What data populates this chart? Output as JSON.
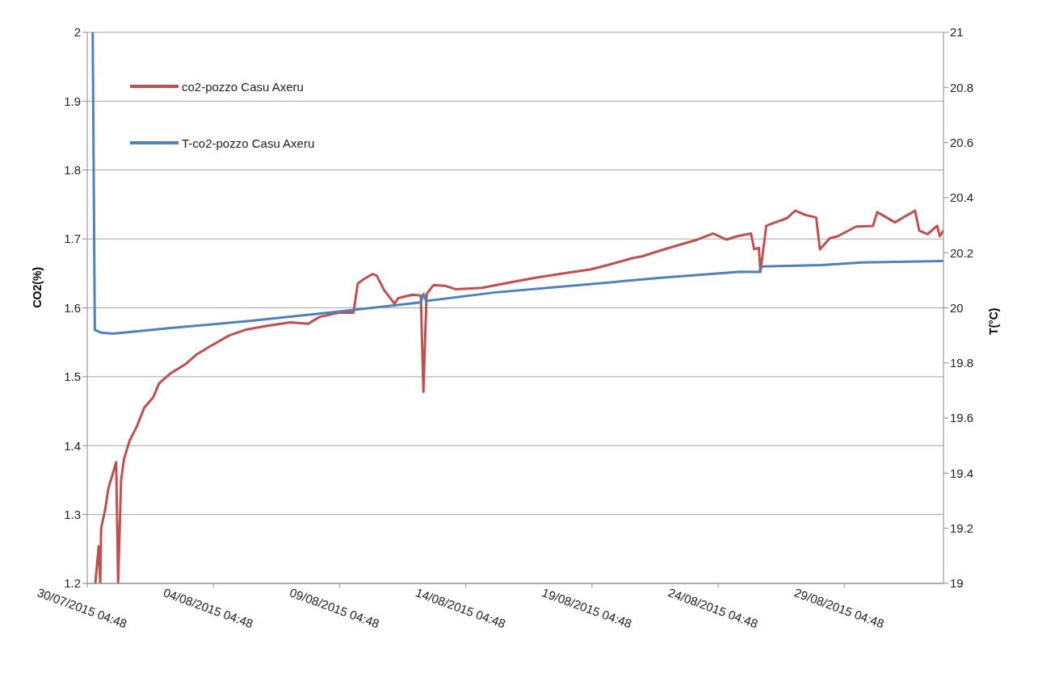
{
  "chart_data": {
    "type": "line",
    "ylabel": "CO2(%)",
    "y2label": "T(°C)",
    "xlim": [
      "2015-07-30T04:48",
      "2015-09-02T03:00"
    ],
    "xticks": [
      {
        "value": "2015-07-30T04:48",
        "label": "30/07/2015 04:48"
      },
      {
        "value": "2015-08-04T04:48",
        "label": "04/08/2015 04:48"
      },
      {
        "value": "2015-08-09T04:48",
        "label": "09/08/2015 04:48"
      },
      {
        "value": "2015-08-14T04:48",
        "label": "14/08/2015 04:48"
      },
      {
        "value": "2015-08-19T04:48",
        "label": "19/08/2015 04:48"
      },
      {
        "value": "2015-08-24T04:48",
        "label": "24/08/2015 04:48"
      },
      {
        "value": "2015-08-29T04:48",
        "label": "29/08/2015 04:48"
      }
    ],
    "ylim": [
      1.2,
      2
    ],
    "yticks": [
      1.2,
      1.3,
      1.4,
      1.5,
      1.6,
      1.7,
      1.8,
      1.9,
      2
    ],
    "y2lim": [
      19,
      21
    ],
    "y2ticks": [
      19,
      19.2,
      19.4,
      19.6,
      19.8,
      20,
      20.2,
      20.4,
      20.6,
      20.8,
      21
    ],
    "grid": "y",
    "legend": "top left",
    "marker": "none",
    "line_style": "solid",
    "series": [
      {
        "name": "co2-pozzo Casu Axeru",
        "color": "#c0504d",
        "x": [
          "2015-07-30T12:30",
          "2015-07-30T15:40",
          "2015-07-30T17:10",
          "2015-07-30T18:00",
          "2015-07-30T21:50",
          "2015-07-31T00:55",
          "2015-07-31T08:20",
          "2015-07-31T10:10",
          "2015-07-31T13:00",
          "2015-07-31T15:40",
          "2015-07-31T21:00",
          "2015-08-01T04:00",
          "2015-08-01T11:00",
          "2015-08-01T19:30",
          "2015-08-02T01:00",
          "2015-08-02T12:00",
          "2015-08-03T02:00",
          "2015-08-03T12:30",
          "2015-08-04T02:30",
          "2015-08-04T20:00",
          "2015-08-05T11:00",
          "2015-08-06T08:00",
          "2015-08-07T06:00",
          "2015-08-07T23:00",
          "2015-08-08T10:00",
          "2015-08-09T04:00",
          "2015-08-09T18:00",
          "2015-08-09T22:00",
          "2015-08-10T03:00",
          "2015-08-10T12:00",
          "2015-08-10T16:00",
          "2015-08-10T23:00",
          "2015-08-11T09:00",
          "2015-08-11T12:30",
          "2015-08-12T02:00",
          "2015-08-12T10:00",
          "2015-08-12T12:30",
          "2015-08-12T15:30",
          "2015-08-12T22:00",
          "2015-08-13T09:00",
          "2015-08-13T19:00",
          "2015-08-14T20:00",
          "2015-08-15T23:00",
          "2015-08-17T00:00",
          "2015-08-18T02:00",
          "2015-08-19T04:00",
          "2015-08-19T19:30",
          "2015-08-20T19:00",
          "2015-08-21T05:00",
          "2015-08-21T15:00",
          "2015-08-22T06:00",
          "2015-08-23T09:00",
          "2015-08-24T00:00",
          "2015-08-24T12:30",
          "2015-08-24T23:00",
          "2015-08-25T12:00",
          "2015-08-25T15:00",
          "2015-08-25T19:30",
          "2015-08-25T21:00",
          "2015-08-26T02:30",
          "2015-08-26T11:00",
          "2015-08-26T22:00",
          "2015-08-27T06:00",
          "2015-08-27T15:30",
          "2015-08-28T02:00",
          "2015-08-28T05:30",
          "2015-08-28T15:00",
          "2015-08-28T22:30",
          "2015-08-29T16:00",
          "2015-08-30T08:00",
          "2015-08-30T12:00",
          "2015-08-31T05:00",
          "2015-08-31T12:30",
          "2015-09-01T00:00",
          "2015-09-01T04:00",
          "2015-09-01T12:00",
          "2015-09-01T21:00",
          "2015-09-01T23:30",
          "2015-09-02T03:00"
        ],
        "values": [
          1.2,
          1.254,
          1.2,
          1.28,
          1.307,
          1.338,
          1.376,
          1.2,
          1.35,
          1.38,
          1.407,
          1.428,
          1.455,
          1.47,
          1.49,
          1.505,
          1.518,
          1.532,
          1.545,
          1.56,
          1.568,
          1.574,
          1.579,
          1.577,
          1.587,
          1.593,
          1.593,
          1.635,
          1.641,
          1.649,
          1.647,
          1.626,
          1.606,
          1.614,
          1.619,
          1.618,
          1.478,
          1.62,
          1.633,
          1.632,
          1.627,
          1.629,
          1.637,
          1.644,
          1.65,
          1.656,
          1.662,
          1.672,
          1.675,
          1.68,
          1.687,
          1.699,
          1.708,
          1.699,
          1.704,
          1.708,
          1.685,
          1.687,
          1.652,
          1.719,
          1.724,
          1.73,
          1.741,
          1.735,
          1.731,
          1.685,
          1.701,
          1.704,
          1.718,
          1.719,
          1.739,
          1.724,
          1.731,
          1.741,
          1.712,
          1.707,
          1.719,
          1.704,
          1.712
        ]
      },
      {
        "name": "T-co2-pozzo Casu Axeru",
        "color": "#4f81bd",
        "axis": "y2",
        "x": [
          "2015-07-30T10:00",
          "2015-07-30T12:00",
          "2015-07-30T18:00",
          "2015-07-31T05:30",
          "2015-08-02T12:00",
          "2015-08-05T17:00",
          "2015-08-09T04:48",
          "2015-08-12T10:00",
          "2015-08-12T12:30",
          "2015-08-12T15:00",
          "2015-08-15T09:00",
          "2015-08-18T15:00",
          "2015-08-21T20:00",
          "2015-08-25T02:00",
          "2015-08-25T19:30",
          "2015-08-25T22:00",
          "2015-08-28T07:00",
          "2015-08-29T22:00",
          "2015-09-02T03:00"
        ],
        "values": [
          21,
          19.92,
          19.91,
          19.906,
          19.927,
          19.953,
          19.987,
          20.02,
          20.05,
          20.025,
          20.056,
          20.082,
          20.108,
          20.131,
          20.13,
          20.15,
          20.155,
          20.165,
          20.17
        ]
      }
    ]
  }
}
